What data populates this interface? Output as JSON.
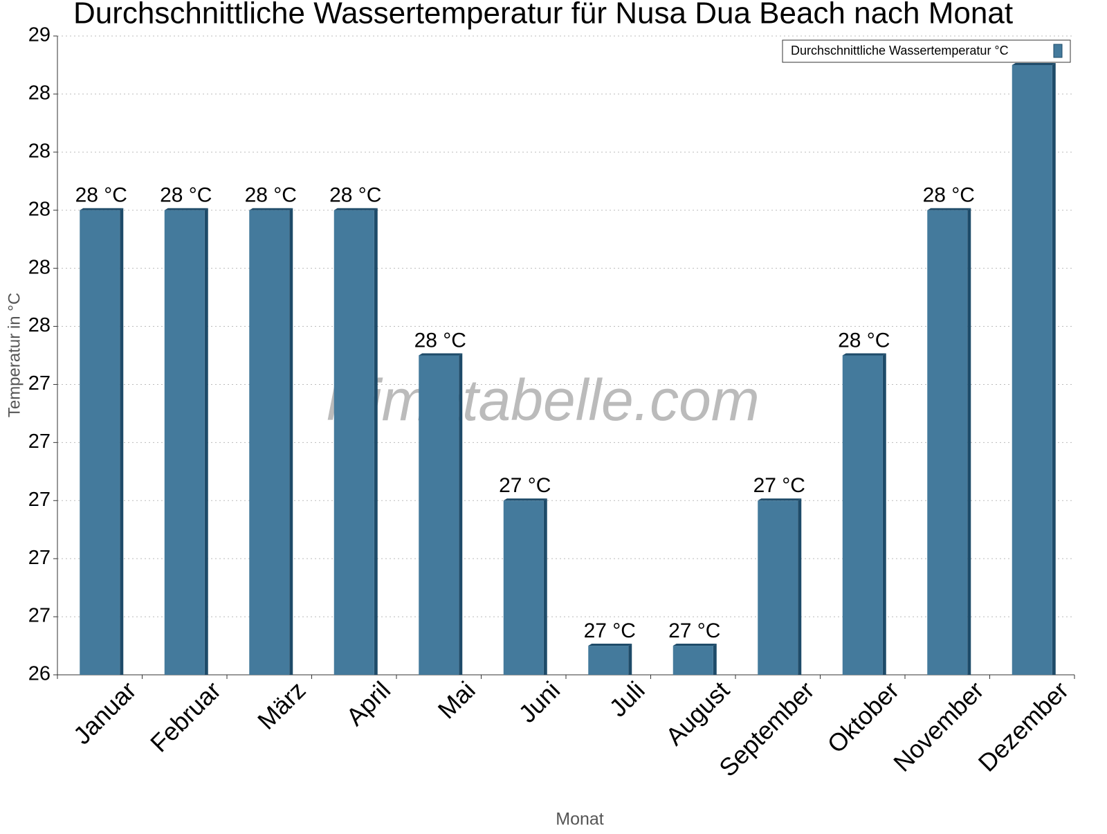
{
  "chart_data": {
    "type": "bar",
    "title": "Durchschnittliche Wassertemperatur für Nusa Dua Beach nach Monat",
    "x_label": "Monat",
    "y_label": "Temperatur in °C",
    "watermark": "klimatabelle.com",
    "categories": [
      "Januar",
      "Februar",
      "März",
      "April",
      "Mai",
      "Juni",
      "Juli",
      "August",
      "September",
      "Oktober",
      "November",
      "Dezember"
    ],
    "series": [
      {
        "name": "Durchschnittliche Wassertemperatur °C",
        "color": "#447a9c",
        "values": [
          28,
          28,
          28,
          28,
          27.5,
          27,
          26.5,
          26.5,
          27,
          27.5,
          28,
          28.5
        ],
        "value_labels": [
          "28 °C",
          "28 °C",
          "28 °C",
          "28 °C",
          "28 °C",
          "27 °C",
          "27 °C",
          "27 °C",
          "27 °C",
          "28 °C",
          "28 °C",
          null
        ]
      }
    ],
    "ylim": [
      26.4,
      28.6
    ],
    "yticks": [
      {
        "value": 26.4,
        "label": "26"
      },
      {
        "value": 26.6,
        "label": "27"
      },
      {
        "value": 26.8,
        "label": "27"
      },
      {
        "value": 27.0,
        "label": "27"
      },
      {
        "value": 27.2,
        "label": "27"
      },
      {
        "value": 27.4,
        "label": "27"
      },
      {
        "value": 27.6,
        "label": "28"
      },
      {
        "value": 27.8,
        "label": "28"
      },
      {
        "value": 28.0,
        "label": "28"
      },
      {
        "value": 28.2,
        "label": "28"
      },
      {
        "value": 28.4,
        "label": "28"
      },
      {
        "value": 28.6,
        "label": "29"
      }
    ],
    "grid": true,
    "legend": "top-right"
  }
}
